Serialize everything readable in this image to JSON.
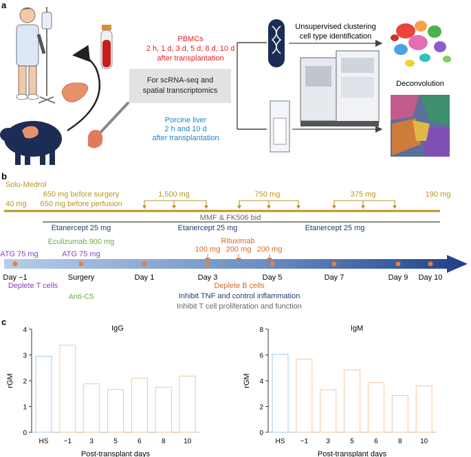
{
  "panel_a": {
    "label": "a",
    "pbmc_lines": [
      "PBMCs",
      "2 h, 1 d, 3 d, 5 d, 8 d, 10 d",
      "after transplantation"
    ],
    "center_lines": [
      "For scRNA-seq and",
      "spatial transcriptomics"
    ],
    "liver_lines": [
      "Porcine liver",
      "2 h and 10 d",
      "after transplantation"
    ],
    "clustering_lines": [
      "Unsupervised clustering",
      "cell type identification"
    ],
    "deconvolution": "Deconvolution"
  },
  "panel_b": {
    "label": "b",
    "solu_medrol": "Solu-Medrol",
    "dose_40": "40 mg",
    "dose_650_surgery": "650 mg before surgery",
    "dose_650_perfusion": "650 mg before perfusion",
    "dose_1500": "1,500 mg",
    "dose_750": "750 mg",
    "dose_375": "375 mg",
    "dose_190": "190 mg",
    "mmf": "MMF & FK506 bid",
    "etanercept": "Etanercept 25 mg",
    "eculizumab": "Eculizumab 900 mg",
    "atg1": "ATG 75 mg",
    "atg2": "ATG 75 mg",
    "dose_100": "100 mg",
    "rituximab": "Rituximab",
    "dose_200a": "200 mg",
    "dose_200b": "200 mg",
    "days": [
      "Day −1",
      "Surgery",
      "Day 1",
      "Day 3",
      "Day 5",
      "Day 7",
      "Day 9",
      "Day 10"
    ],
    "deplete_t": "Deplete T cells",
    "anti_c5": "Anti-C5",
    "deplete_b": "Deplete B cells",
    "inhibit_tnf": "Inhibit TNF and control inflammation",
    "inhibit_t": "Inhibit T cell proliferation and function",
    "colors": {
      "gold": "#b8941f",
      "purple": "#8a3fb8",
      "green": "#6fa844",
      "navy": "#1f3b73",
      "orange": "#d46a26",
      "gray": "#666666",
      "red": "#e0211c",
      "blue": "#1a86c9"
    }
  },
  "panel_c": {
    "label": "c",
    "xlabel": "Post-transplant days"
  },
  "chart_data": [
    {
      "type": "bar",
      "title": "IgG",
      "ylabel": "rGM",
      "xlabel": "Post-transplant days",
      "categories": [
        "HS",
        "−1",
        "3",
        "5",
        "6",
        "8",
        "10"
      ],
      "values": [
        2.95,
        3.38,
        1.88,
        1.66,
        2.1,
        1.75,
        2.18
      ],
      "ylim": [
        0,
        4
      ],
      "yticks": [
        0,
        1,
        2,
        3,
        4
      ],
      "colors": [
        "#a9c8ea",
        "#f5c69a",
        "#f5c69a",
        "#f5c69a",
        "#f5c69a",
        "#f5c69a",
        "#f5c69a"
      ]
    },
    {
      "type": "bar",
      "title": "IgM",
      "ylabel": "rGM",
      "xlabel": "Post-transplant days",
      "categories": [
        "HS",
        "−1",
        "3",
        "5",
        "6",
        "8",
        "10"
      ],
      "values": [
        6.05,
        5.68,
        3.3,
        4.85,
        3.85,
        2.85,
        3.6
      ],
      "ylim": [
        0,
        8
      ],
      "yticks": [
        0,
        2,
        4,
        6,
        8
      ],
      "colors": [
        "#a9c8ea",
        "#f5c69a",
        "#f5c69a",
        "#f5c69a",
        "#f5c69a",
        "#f5c69a",
        "#f5c69a"
      ]
    }
  ]
}
